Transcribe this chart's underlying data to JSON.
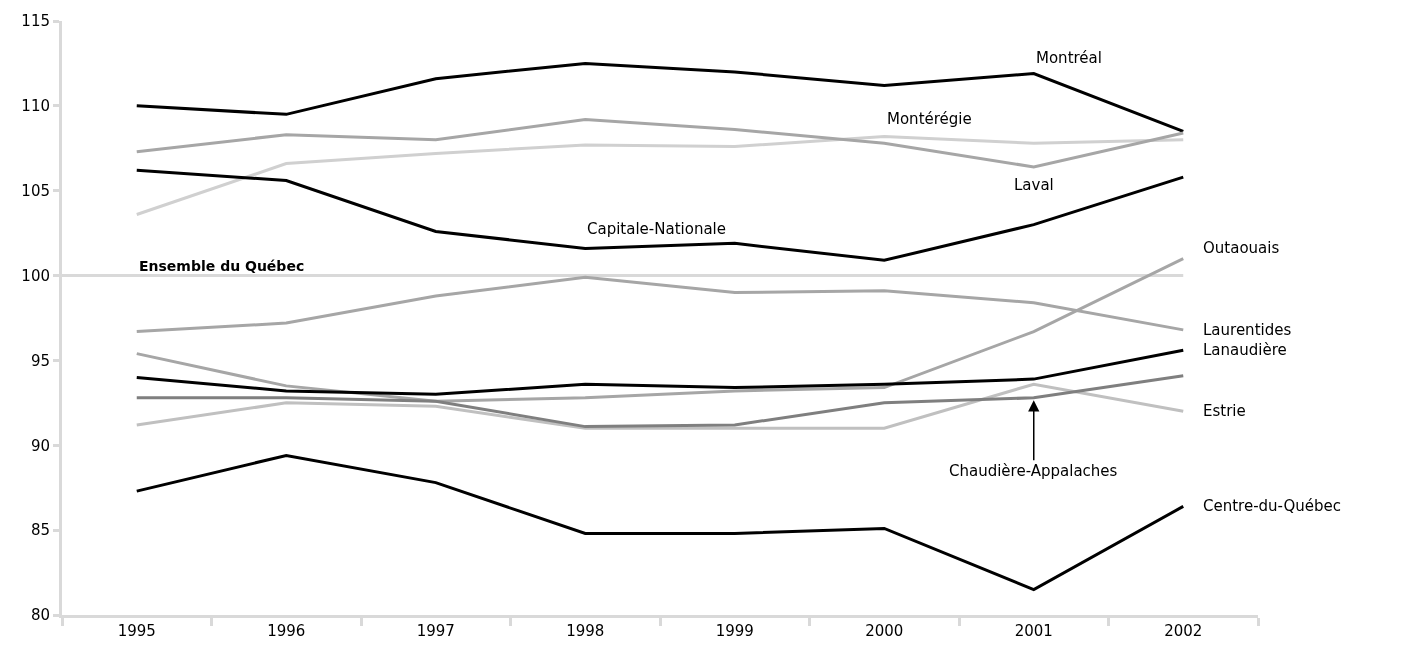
{
  "chart_data": {
    "type": "line",
    "categories": [
      "1995",
      "1996",
      "1997",
      "1998",
      "1999",
      "2000",
      "2001",
      "2002"
    ],
    "series": [
      {
        "name": "Montréal",
        "color": "#000000",
        "values": [
          110.0,
          109.5,
          111.6,
          112.5,
          112.0,
          111.2,
          111.9,
          108.5
        ]
      },
      {
        "name": "Montérégie",
        "color": "#d0d0d0",
        "values": [
          103.6,
          106.6,
          107.2,
          107.7,
          107.6,
          108.2,
          107.8,
          108.0
        ]
      },
      {
        "name": "Laval",
        "color": "#a6a6a6",
        "values": [
          107.3,
          108.3,
          108.0,
          109.2,
          108.6,
          107.8,
          106.4,
          108.4
        ]
      },
      {
        "name": "Capitale-Nationale",
        "color": "#000000",
        "values": [
          106.2,
          105.6,
          102.6,
          101.6,
          101.9,
          100.9,
          103.0,
          105.8
        ]
      },
      {
        "name": "Outaouais",
        "color": "#a6a6a6",
        "values": [
          95.4,
          93.5,
          92.6,
          92.8,
          93.2,
          93.4,
          96.7,
          101.0
        ]
      },
      {
        "name": "Laurentides",
        "color": "#a6a6a6",
        "values": [
          96.7,
          97.2,
          98.8,
          99.9,
          99.0,
          99.1,
          98.4,
          96.8
        ]
      },
      {
        "name": "Lanaudière",
        "color": "#000000",
        "values": [
          94.0,
          93.2,
          93.0,
          93.6,
          93.4,
          93.6,
          93.9,
          95.6
        ]
      },
      {
        "name": "Estrie",
        "color": "#c0c0c0",
        "values": [
          91.2,
          92.5,
          92.3,
          91.0,
          91.0,
          91.0,
          93.6,
          92.0
        ]
      },
      {
        "name": "Chaudière-Appalaches",
        "color": "#7f7f7f",
        "values": [
          92.8,
          92.8,
          92.6,
          91.1,
          91.2,
          92.5,
          92.8,
          94.1
        ]
      },
      {
        "name": "Centre-du-Québec",
        "color": "#000000",
        "values": [
          87.3,
          89.4,
          87.8,
          84.8,
          84.8,
          85.1,
          81.5,
          86.4
        ]
      }
    ],
    "ylim": [
      80,
      115
    ],
    "yticks": [
      80,
      85,
      90,
      95,
      100,
      105,
      110,
      115
    ],
    "ref_lines": [
      {
        "axis": "y",
        "value": 100,
        "label": "Ensemble du Québec",
        "color": "#d9d9d9"
      }
    ],
    "legend": false,
    "grid": false,
    "marker": "none",
    "line_style": "solid"
  }
}
